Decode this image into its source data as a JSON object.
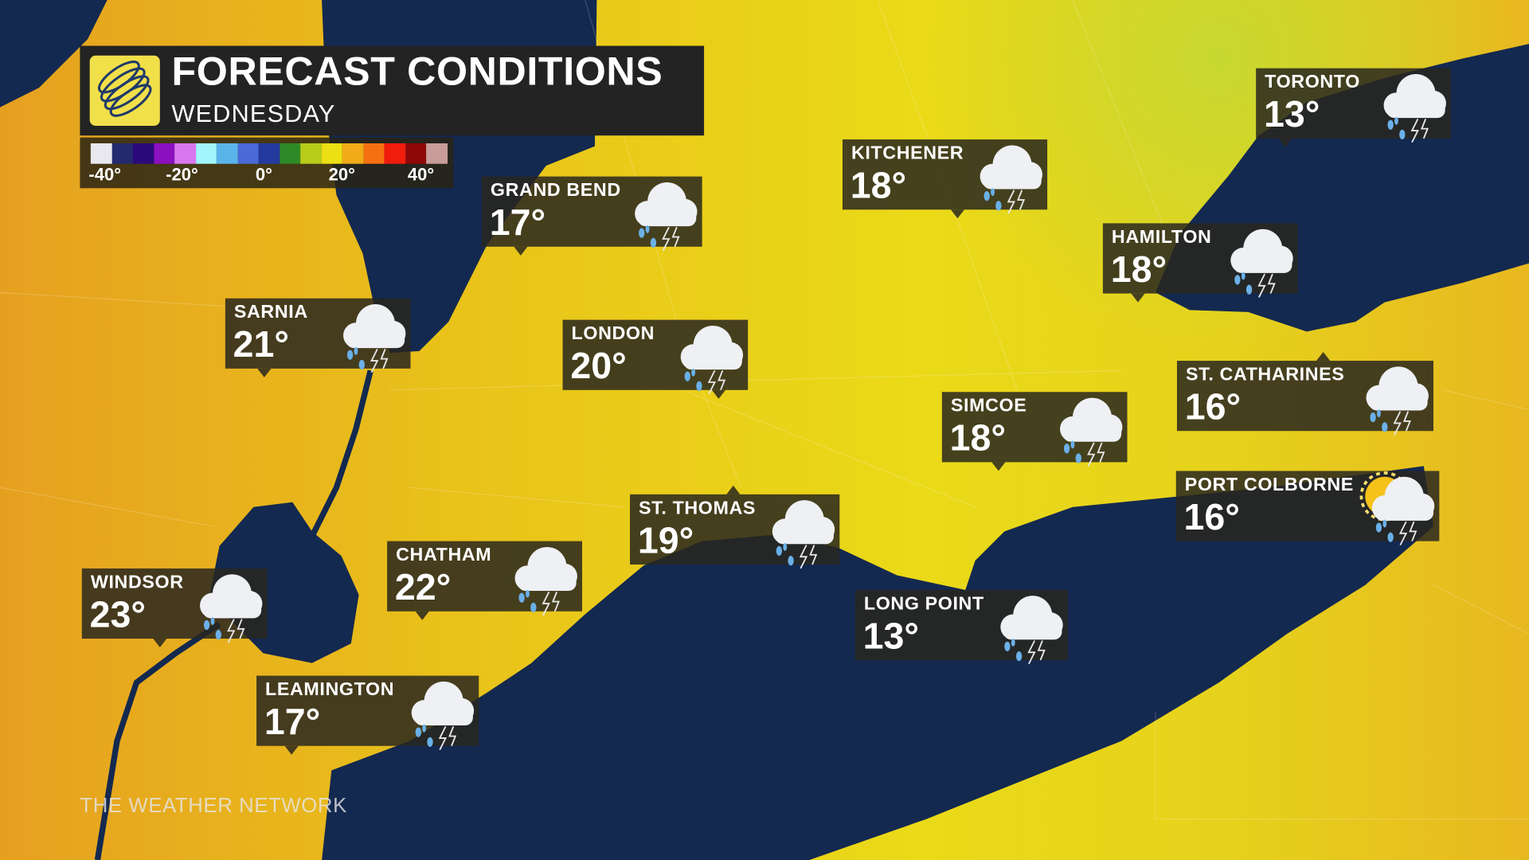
{
  "header": {
    "title": "FORECAST CONDITIONS",
    "subtitle": "WEDNESDAY",
    "logo_icon": "weather-network-globe-icon"
  },
  "legend": {
    "colors": [
      "#e8e8ee",
      "#242a6e",
      "#2a0a78",
      "#8a10c0",
      "#d877f0",
      "#a2f6fb",
      "#5ab4ea",
      "#4a6ad8",
      "#243a9e",
      "#2e8a26",
      "#b8cc1a",
      "#ece014",
      "#f2aa18",
      "#f57010",
      "#f01c0c",
      "#8e0808",
      "#c89c98"
    ],
    "ticks": [
      "-40°",
      "-20°",
      "0°",
      "20°",
      "40°"
    ]
  },
  "cities": [
    {
      "name": "TORONTO",
      "temp": "13°",
      "icon": "rain-thunderstorm-icon"
    },
    {
      "name": "KITCHENER",
      "temp": "18°",
      "icon": "rain-thunderstorm-icon"
    },
    {
      "name": "GRAND BEND",
      "temp": "17°",
      "icon": "rain-thunderstorm-icon"
    },
    {
      "name": "HAMILTON",
      "temp": "18°",
      "icon": "rain-thunderstorm-icon"
    },
    {
      "name": "SARNIA",
      "temp": "21°",
      "icon": "rain-thunderstorm-icon"
    },
    {
      "name": "LONDON",
      "temp": "20°",
      "icon": "rain-thunderstorm-icon"
    },
    {
      "name": "ST. CATHARINES",
      "temp": "16°",
      "icon": "rain-thunderstorm-icon"
    },
    {
      "name": "SIMCOE",
      "temp": "18°",
      "icon": "rain-thunderstorm-icon"
    },
    {
      "name": "PORT COLBORNE",
      "temp": "16°",
      "icon": "sun-cloud-rain-thunderstorm-icon"
    },
    {
      "name": "ST. THOMAS",
      "temp": "19°",
      "icon": "rain-thunderstorm-icon"
    },
    {
      "name": "CHATHAM",
      "temp": "22°",
      "icon": "rain-thunderstorm-icon"
    },
    {
      "name": "WINDSOR",
      "temp": "23°",
      "icon": "rain-thunderstorm-icon"
    },
    {
      "name": "LONG POINT",
      "temp": "13°",
      "icon": "rain-thunderstorm-icon"
    },
    {
      "name": "LEAMINGTON",
      "temp": "17°",
      "icon": "rain-thunderstorm-icon"
    }
  ],
  "colors": {
    "land": "#e8c21c",
    "water": "#13284e",
    "panel": "#232323"
  },
  "brand": "THE WEATHER NETWORK"
}
